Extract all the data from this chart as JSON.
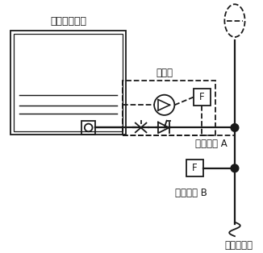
{
  "bg_color": "#ffffff",
  "line_color": "#1a1a1a",
  "dashed_color": "#1a1a1a",
  "text_color": "#1a1a1a",
  "tank_label": "高位消防水箱",
  "pump_label": "稳压泵",
  "flow_switch_a_label": "流量开关 A",
  "flow_switch_b_label": "流量开关 B",
  "system_label": "接消防系统",
  "figsize": [
    3.26,
    3.14
  ],
  "dpi": 100
}
